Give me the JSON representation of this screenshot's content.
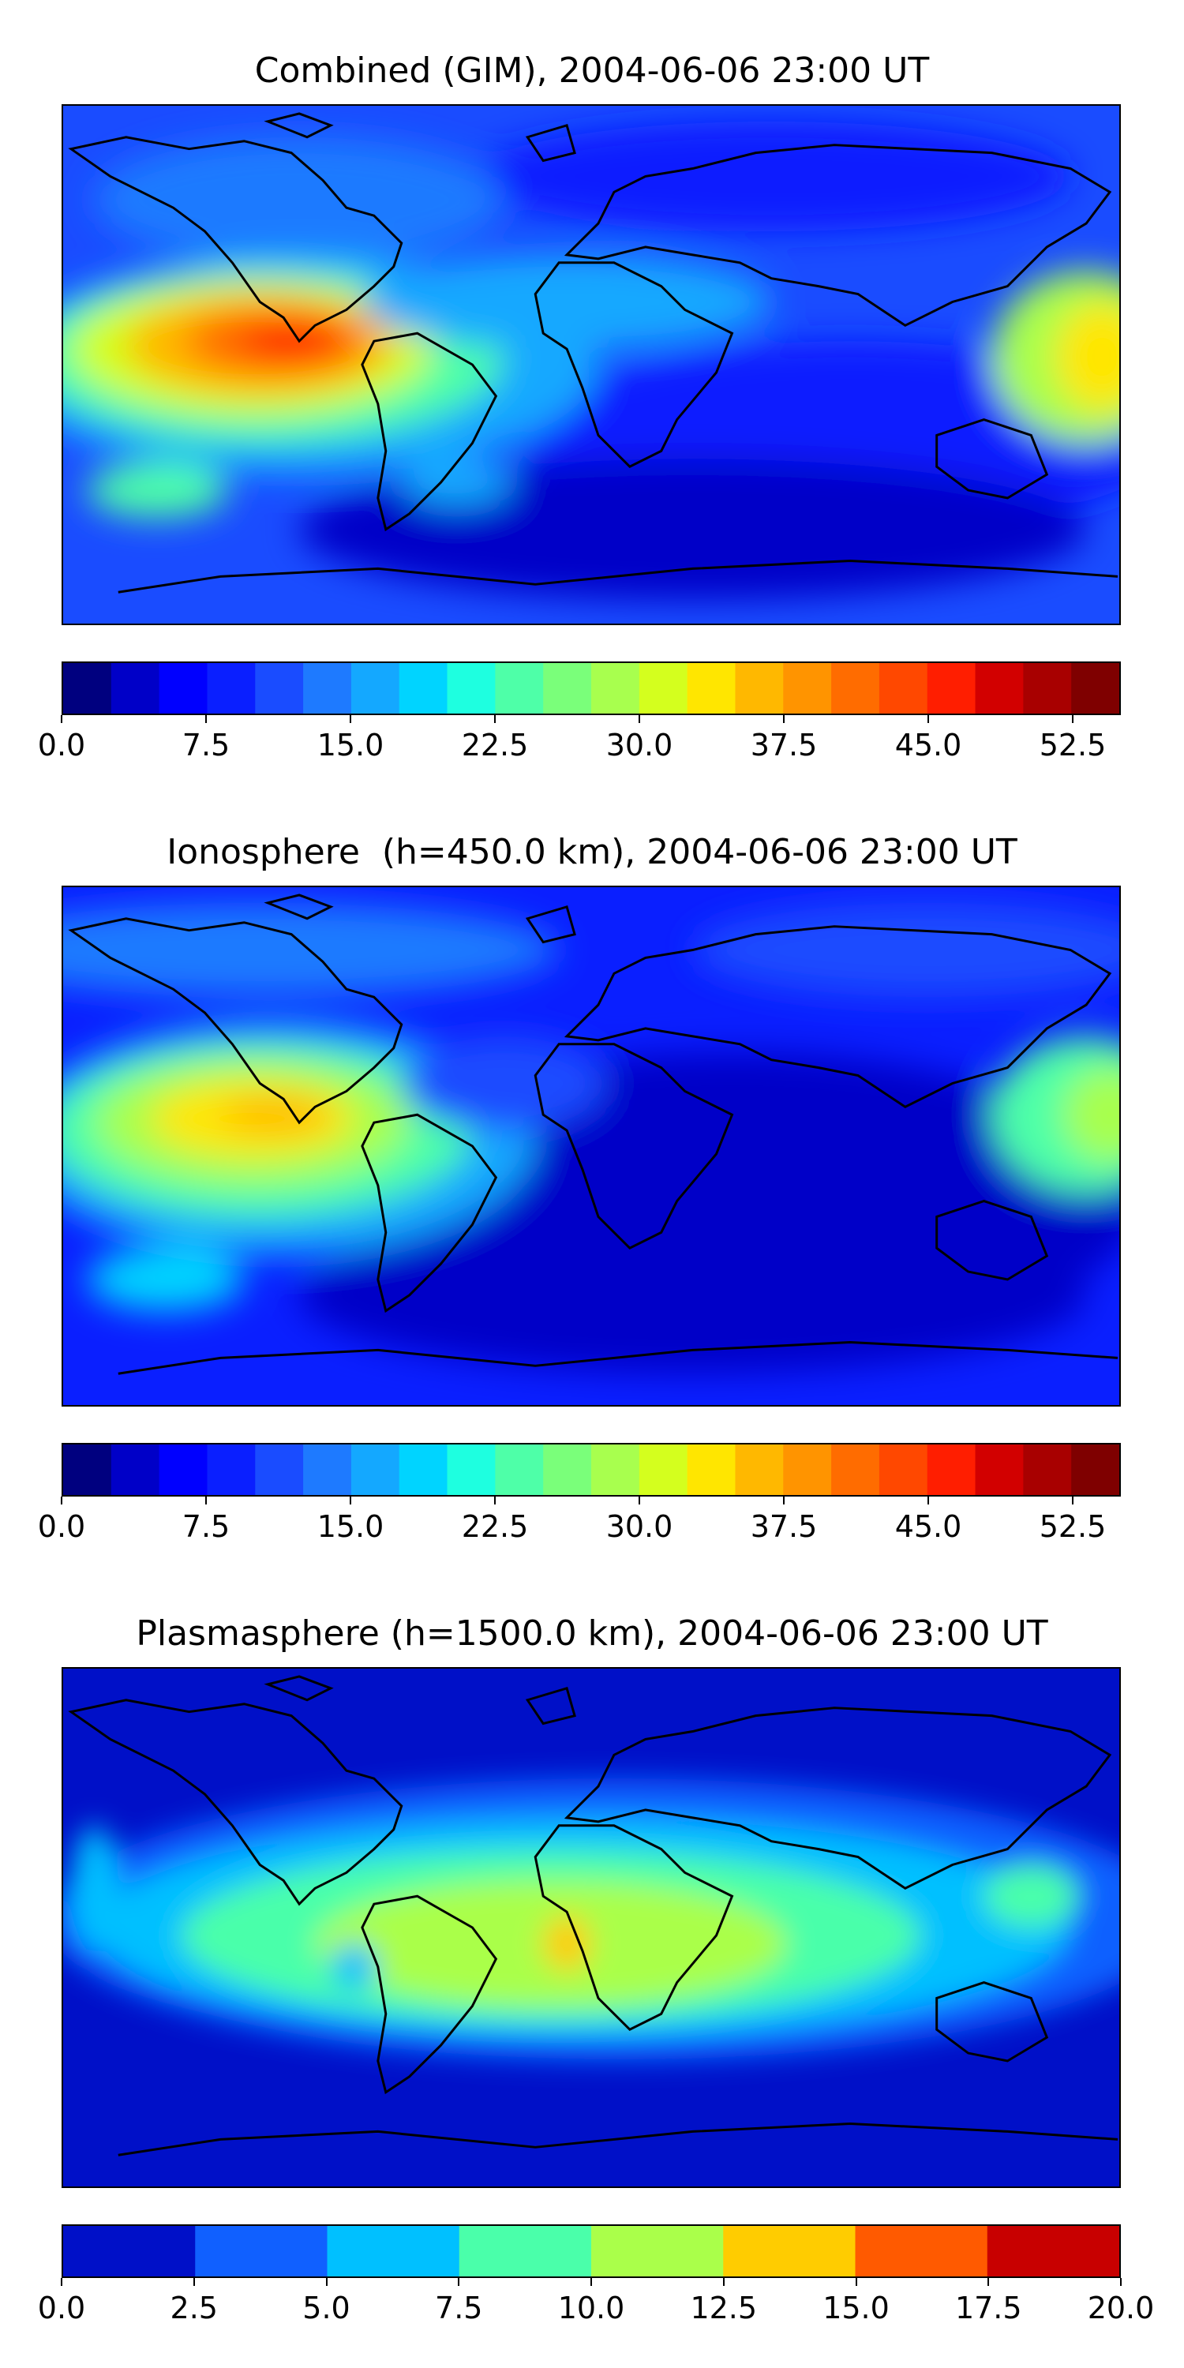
{
  "panels": [
    {
      "title": "Combined (GIM), 2004-06-06 23:00 UT",
      "colorbar": {
        "min": 0,
        "max": 55,
        "ticks": [
          "0.0",
          "7.5",
          "15.0",
          "22.5",
          "30.0",
          "37.5",
          "45.0",
          "52.5"
        ],
        "tick_values": [
          0,
          7.5,
          15,
          22.5,
          30,
          37.5,
          45,
          52.5
        ],
        "levels": 22,
        "colors": [
          "#00007f",
          "#0000c8",
          "#0000ff",
          "#0a1fff",
          "#1a4cff",
          "#1e7aff",
          "#14a8ff",
          "#00d4ff",
          "#1effe0",
          "#4effa8",
          "#7aff7a",
          "#a8ff4e",
          "#d4ff1e",
          "#ffe600",
          "#ffb800",
          "#ff9400",
          "#ff6c00",
          "#ff4800",
          "#ff1e00",
          "#d20000",
          "#a80000",
          "#7f0000"
        ]
      }
    },
    {
      "title": "Ionosphere  (h=450.0 km), 2004-06-06 23:00 UT",
      "colorbar": {
        "min": 0,
        "max": 55,
        "ticks": [
          "0.0",
          "7.5",
          "15.0",
          "22.5",
          "30.0",
          "37.5",
          "45.0",
          "52.5"
        ],
        "tick_values": [
          0,
          7.5,
          15,
          22.5,
          30,
          37.5,
          45,
          52.5
        ],
        "levels": 22,
        "colors": [
          "#00007f",
          "#0000c8",
          "#0000ff",
          "#0a1fff",
          "#1a4cff",
          "#1e7aff",
          "#14a8ff",
          "#00d4ff",
          "#1effe0",
          "#4effa8",
          "#7aff7a",
          "#a8ff4e",
          "#d4ff1e",
          "#ffe600",
          "#ffb800",
          "#ff9400",
          "#ff6c00",
          "#ff4800",
          "#ff1e00",
          "#d20000",
          "#a80000",
          "#7f0000"
        ]
      }
    },
    {
      "title": "Plasmasphere (h=1500.0 km), 2004-06-06 23:00 UT",
      "colorbar": {
        "min": 0,
        "max": 20,
        "ticks": [
          "0.0",
          "2.5",
          "5.0",
          "7.5",
          "10.0",
          "12.5",
          "15.0",
          "17.5",
          "20.0"
        ],
        "tick_values": [
          0,
          2.5,
          5,
          7.5,
          10,
          12.5,
          15,
          17.5,
          20
        ],
        "levels": 8,
        "colors": [
          "#0010c8",
          "#1060ff",
          "#00c0ff",
          "#4affaa",
          "#aaff4a",
          "#ffcc00",
          "#ff5a00",
          "#c80000"
        ]
      }
    }
  ]
}
